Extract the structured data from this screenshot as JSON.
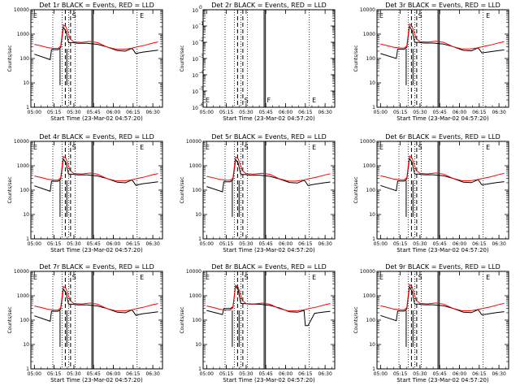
{
  "x_ticks": [
    "05:00",
    "05:15",
    "05:30",
    "05:45",
    "06:00",
    "06:15",
    "06:30"
  ],
  "xlabel": "Start Time (23-Mar-02 04:57:20)",
  "ylabel": "Counts/sec",
  "yticks_counts": [
    "1",
    "10",
    "100",
    "1000",
    "10000"
  ],
  "yticks_exp": [
    "10",
    "10",
    "10",
    "10",
    "10",
    "10",
    "10"
  ],
  "yticks_exp_sup": [
    "0",
    "-1",
    "-2",
    "-3",
    "-4",
    "-5",
    "-6"
  ],
  "attenuator_markers": [
    "E",
    "S",
    "F",
    "E"
  ],
  "colors": {
    "events": "#000000",
    "lld": "#ff0000",
    "axes": "#000000"
  },
  "chart_data": [
    {
      "type": "line",
      "title": "Det 1r BLACK = Events, RED = LLD",
      "ylim": [
        1,
        10000
      ],
      "yscale": "log",
      "xlim_minutes": [
        "04:57:20",
        "06:37:20"
      ],
      "series": [
        {
          "color": "#000000",
          "x": [
            "05:00",
            "05:12",
            "05:13",
            "05:18",
            "05:20",
            "05:22",
            "05:24",
            "05:26",
            "05:29",
            "05:33",
            "05:40",
            "05:48",
            "05:55",
            "06:03",
            "06:09",
            "06:14",
            "06:15",
            "06:17",
            "06:22",
            "06:28",
            "06:34"
          ],
          "values": [
            150,
            90,
            230,
            230,
            280,
            1900,
            1300,
            450,
            450,
            420,
            420,
            380,
            300,
            210,
            200,
            260,
            230,
            160,
            180,
            200,
            220
          ]
        },
        {
          "color": "#ff0000",
          "x": [
            "05:00",
            "05:05",
            "05:10",
            "05:15",
            "05:18",
            "05:20",
            "05:22",
            "05:24",
            "05:27",
            "05:30",
            "05:36",
            "05:42",
            "05:48",
            "05:55",
            "06:02",
            "06:08",
            "06:13",
            "06:18",
            "06:24",
            "06:30",
            "06:34"
          ],
          "values": [
            380,
            330,
            280,
            260,
            260,
            320,
            2400,
            2000,
            650,
            480,
            460,
            500,
            450,
            300,
            240,
            240,
            260,
            300,
            350,
            430,
            480
          ]
        }
      ]
    },
    {
      "type": "line",
      "title": "Det 2r BLACK = Events, RED = LLD",
      "ylim": [
        1e-06,
        1
      ],
      "yscale": "log",
      "series": []
    },
    {
      "type": "line",
      "title": "Det 3r BLACK = Events, RED = LLD",
      "ylim": [
        1,
        10000
      ],
      "yscale": "log",
      "series": [
        {
          "color": "#000000",
          "x": [
            "05:00",
            "05:12",
            "05:13",
            "05:18",
            "05:20",
            "05:22",
            "05:24",
            "05:26",
            "05:29",
            "05:33",
            "05:40",
            "05:48",
            "05:55",
            "06:03",
            "06:09",
            "06:14",
            "06:15",
            "06:17",
            "06:22",
            "06:28",
            "06:34"
          ],
          "values": [
            160,
            100,
            240,
            240,
            290,
            2100,
            1400,
            460,
            460,
            430,
            430,
            390,
            310,
            215,
            205,
            270,
            240,
            170,
            185,
            205,
            225
          ]
        },
        {
          "color": "#ff0000",
          "x": [
            "05:00",
            "05:05",
            "05:10",
            "05:15",
            "05:18",
            "05:20",
            "05:22",
            "05:24",
            "05:27",
            "05:30",
            "05:36",
            "05:42",
            "05:48",
            "05:55",
            "06:02",
            "06:08",
            "06:13",
            "06:18",
            "06:24",
            "06:30",
            "06:34"
          ],
          "values": [
            390,
            340,
            290,
            270,
            270,
            330,
            2600,
            2100,
            660,
            490,
            470,
            510,
            460,
            310,
            245,
            245,
            270,
            310,
            360,
            440,
            490
          ]
        }
      ]
    },
    {
      "type": "line",
      "title": "Det 4r BLACK = Events, RED = LLD",
      "ylim": [
        1,
        10000
      ],
      "yscale": "log",
      "series": [
        {
          "color": "#000000",
          "x": [
            "05:00",
            "05:12",
            "05:13",
            "05:18",
            "05:20",
            "05:22",
            "05:24",
            "05:26",
            "05:29",
            "05:33",
            "05:40",
            "05:48",
            "05:55",
            "06:03",
            "06:09",
            "06:14",
            "06:15",
            "06:17",
            "06:22",
            "06:28",
            "06:34"
          ],
          "values": [
            150,
            90,
            230,
            230,
            280,
            1900,
            1300,
            450,
            450,
            420,
            420,
            380,
            300,
            210,
            200,
            260,
            230,
            160,
            180,
            200,
            220
          ]
        },
        {
          "color": "#ff0000",
          "x": [
            "05:00",
            "05:05",
            "05:10",
            "05:15",
            "05:18",
            "05:20",
            "05:22",
            "05:24",
            "05:27",
            "05:30",
            "05:36",
            "05:42",
            "05:48",
            "05:55",
            "06:02",
            "06:08",
            "06:13",
            "06:18",
            "06:24",
            "06:30",
            "06:34"
          ],
          "values": [
            380,
            330,
            280,
            260,
            260,
            320,
            2400,
            2000,
            650,
            480,
            460,
            500,
            450,
            300,
            240,
            240,
            260,
            300,
            350,
            430,
            480
          ]
        }
      ]
    },
    {
      "type": "line",
      "title": "Det 5r BLACK = Events, RED = LLD",
      "ylim": [
        1,
        10000
      ],
      "yscale": "log",
      "series": [
        {
          "color": "#000000",
          "x": [
            "05:00",
            "05:12",
            "05:13",
            "05:18",
            "05:20",
            "05:22",
            "05:24",
            "05:26",
            "05:29",
            "05:33",
            "05:40",
            "05:48",
            "05:55",
            "06:03",
            "06:09",
            "06:14",
            "06:15",
            "06:17",
            "06:22",
            "06:28",
            "06:34"
          ],
          "values": [
            140,
            85,
            220,
            220,
            270,
            1800,
            1250,
            440,
            440,
            410,
            410,
            370,
            290,
            205,
            195,
            255,
            225,
            155,
            175,
            195,
            215
          ]
        },
        {
          "color": "#ff0000",
          "x": [
            "05:00",
            "05:05",
            "05:10",
            "05:15",
            "05:18",
            "05:20",
            "05:22",
            "05:24",
            "05:27",
            "05:30",
            "05:36",
            "05:42",
            "05:48",
            "05:55",
            "06:02",
            "06:08",
            "06:13",
            "06:18",
            "06:24",
            "06:30",
            "06:34"
          ],
          "values": [
            370,
            320,
            275,
            255,
            255,
            315,
            2300,
            1900,
            640,
            470,
            455,
            495,
            445,
            295,
            235,
            235,
            255,
            295,
            345,
            420,
            470
          ]
        }
      ]
    },
    {
      "type": "line",
      "title": "Det 6r BLACK = Events, RED = LLD",
      "ylim": [
        1,
        10000
      ],
      "yscale": "log",
      "series": [
        {
          "color": "#000000",
          "x": [
            "05:00",
            "05:12",
            "05:13",
            "05:18",
            "05:20",
            "05:22",
            "05:24",
            "05:26",
            "05:29",
            "05:33",
            "05:40",
            "05:48",
            "05:55",
            "06:03",
            "06:09",
            "06:14",
            "06:15",
            "06:17",
            "06:22",
            "06:28",
            "06:34"
          ],
          "values": [
            155,
            95,
            235,
            235,
            285,
            2000,
            1350,
            455,
            455,
            425,
            425,
            385,
            305,
            212,
            202,
            265,
            235,
            165,
            182,
            202,
            222
          ]
        },
        {
          "color": "#ff0000",
          "x": [
            "05:00",
            "05:05",
            "05:10",
            "05:15",
            "05:18",
            "05:20",
            "05:22",
            "05:24",
            "05:27",
            "05:30",
            "05:36",
            "05:42",
            "05:48",
            "05:55",
            "06:02",
            "06:08",
            "06:13",
            "06:18",
            "06:24",
            "06:30",
            "06:34"
          ],
          "values": [
            385,
            335,
            285,
            265,
            265,
            325,
            2500,
            2050,
            655,
            485,
            465,
            505,
            455,
            305,
            242,
            242,
            265,
            305,
            355,
            435,
            485
          ]
        }
      ]
    },
    {
      "type": "line",
      "title": "Det 7r BLACK = Events, RED = LLD",
      "ylim": [
        1,
        10000
      ],
      "yscale": "log",
      "series": [
        {
          "color": "#000000",
          "x": [
            "05:00",
            "05:12",
            "05:13",
            "05:18",
            "05:20",
            "05:22",
            "05:24",
            "05:26",
            "05:29",
            "05:33",
            "05:40",
            "05:48",
            "05:55",
            "06:03",
            "06:09",
            "06:14",
            "06:15",
            "06:17",
            "06:22",
            "06:28",
            "06:34"
          ],
          "values": [
            150,
            90,
            230,
            230,
            280,
            1900,
            1300,
            450,
            450,
            420,
            420,
            380,
            300,
            210,
            200,
            260,
            230,
            160,
            180,
            200,
            220
          ]
        },
        {
          "color": "#ff0000",
          "x": [
            "05:00",
            "05:05",
            "05:10",
            "05:15",
            "05:18",
            "05:20",
            "05:22",
            "05:24",
            "05:27",
            "05:30",
            "05:36",
            "05:42",
            "05:48",
            "05:55",
            "06:02",
            "06:08",
            "06:13",
            "06:18",
            "06:24",
            "06:30",
            "06:34"
          ],
          "values": [
            380,
            330,
            280,
            260,
            260,
            320,
            2400,
            2000,
            650,
            480,
            460,
            500,
            450,
            300,
            240,
            240,
            260,
            300,
            350,
            430,
            480
          ]
        }
      ]
    },
    {
      "type": "line",
      "title": "Det 8r BLACK = Events, RED = LLD",
      "ylim": [
        1,
        10000
      ],
      "yscale": "log",
      "series": [
        {
          "color": "#000000",
          "x": [
            "05:00",
            "05:12",
            "05:13",
            "05:18",
            "05:20",
            "05:22",
            "05:24",
            "05:26",
            "05:29",
            "05:33",
            "05:40",
            "05:48",
            "05:55",
            "06:03",
            "06:09",
            "06:14",
            "06:15",
            "06:17",
            "06:22",
            "06:28",
            "06:34"
          ],
          "values": [
            250,
            170,
            300,
            300,
            350,
            2600,
            1700,
            480,
            480,
            450,
            450,
            400,
            320,
            220,
            210,
            250,
            60,
            60,
            190,
            210,
            230
          ]
        },
        {
          "color": "#ff0000",
          "x": [
            "05:00",
            "05:05",
            "05:10",
            "05:15",
            "05:18",
            "05:20",
            "05:22",
            "05:24",
            "05:27",
            "05:30",
            "05:36",
            "05:42",
            "05:48",
            "05:55",
            "06:02",
            "06:08",
            "06:13",
            "06:18",
            "06:24",
            "06:30",
            "06:34"
          ],
          "values": [
            380,
            330,
            280,
            260,
            260,
            320,
            2700,
            2200,
            650,
            480,
            460,
            500,
            450,
            300,
            240,
            240,
            260,
            300,
            350,
            430,
            480
          ]
        }
      ]
    },
    {
      "type": "line",
      "title": "Det 9r BLACK = Events, RED = LLD",
      "ylim": [
        1,
        10000
      ],
      "yscale": "log",
      "series": [
        {
          "color": "#000000",
          "x": [
            "05:00",
            "05:12",
            "05:13",
            "05:18",
            "05:20",
            "05:22",
            "05:24",
            "05:26",
            "05:29",
            "05:33",
            "05:40",
            "05:48",
            "05:55",
            "06:03",
            "06:09",
            "06:14",
            "06:15",
            "06:17",
            "06:22",
            "06:28",
            "06:34"
          ],
          "values": [
            155,
            95,
            235,
            235,
            285,
            2300,
            1500,
            455,
            455,
            425,
            425,
            385,
            305,
            212,
            202,
            265,
            235,
            165,
            182,
            202,
            222
          ]
        },
        {
          "color": "#ff0000",
          "x": [
            "05:00",
            "05:05",
            "05:10",
            "05:15",
            "05:18",
            "05:20",
            "05:22",
            "05:24",
            "05:27",
            "05:30",
            "05:36",
            "05:42",
            "05:48",
            "05:55",
            "06:02",
            "06:08",
            "06:13",
            "06:18",
            "06:24",
            "06:30",
            "06:34"
          ],
          "values": [
            385,
            335,
            285,
            265,
            265,
            325,
            2900,
            2300,
            655,
            485,
            465,
            505,
            455,
            305,
            242,
            242,
            265,
            305,
            355,
            435,
            485
          ]
        }
      ]
    }
  ]
}
